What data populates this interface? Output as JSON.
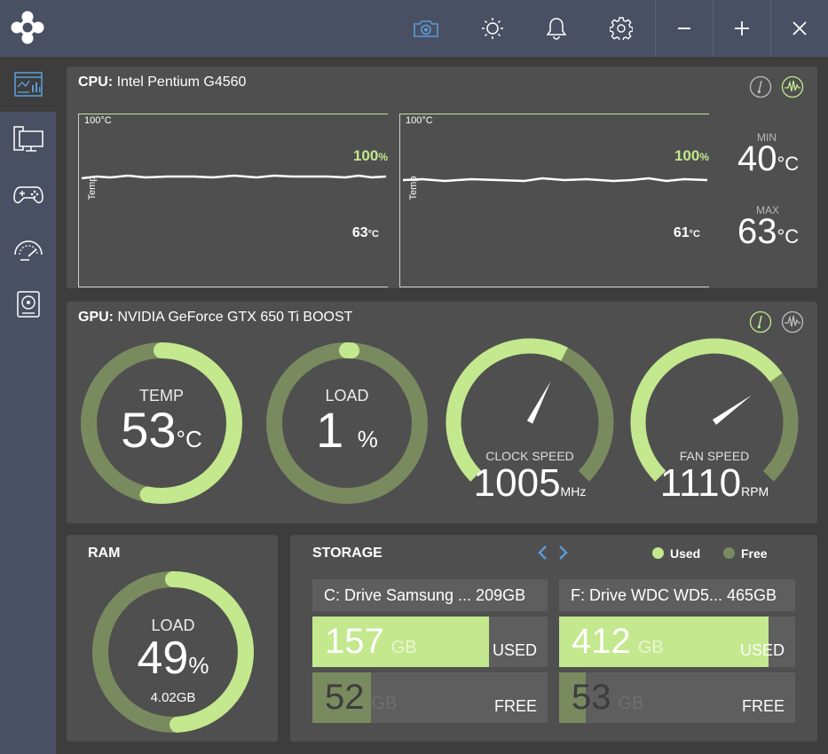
{
  "titlebar": {
    "icons": [
      "app-logo",
      "camera-icon",
      "brightness-icon",
      "bell-icon",
      "gear-icon",
      "minimize-icon",
      "maximize-icon",
      "close-icon"
    ]
  },
  "sidebar": {
    "items": [
      "dashboard-icon",
      "computer-icon",
      "gamepad-icon",
      "speedometer-icon",
      "storage-icon"
    ]
  },
  "cpu": {
    "label": "CPU:",
    "name": "Intel Pentium G4560",
    "graphs": [
      {
        "max_label": "100°C",
        "axis_label": "Temp",
        "load_value": "100",
        "load_unit": "%",
        "temp_value": "63",
        "temp_unit": "°C",
        "load": 100,
        "temp": 63
      },
      {
        "max_label": "100°C",
        "axis_label": "Temp",
        "load_value": "100",
        "load_unit": "%",
        "temp_value": "61",
        "temp_unit": "°C",
        "load": 100,
        "temp": 61
      }
    ],
    "min_label": "MIN",
    "min_value": "40",
    "min_unit": "°C",
    "max_label": "MAX",
    "max_value": "63",
    "max_unit": "°C"
  },
  "gpu": {
    "label": "GPU:",
    "name": "NVIDIA GeForce GTX 650 Ti BOOST",
    "temp": {
      "label": "TEMP",
      "value": "53",
      "unit": "°C",
      "fraction": 0.53
    },
    "load": {
      "label": "LOAD",
      "value": "1",
      "unit": "%",
      "fraction": 0.01
    },
    "clock": {
      "label": "CLOCK SPEED",
      "value": "1005",
      "unit": "MHz",
      "fraction": 0.6
    },
    "fan": {
      "label": "FAN SPEED",
      "value": "1110",
      "unit": "RPM",
      "fraction": 0.7
    }
  },
  "ram": {
    "title": "RAM",
    "label": "LOAD",
    "value": "49",
    "unit": "%",
    "amount": "4.02GB",
    "fraction": 0.49
  },
  "storage": {
    "title": "STORAGE",
    "legend_used": "Used",
    "legend_free": "Free",
    "drives": [
      {
        "name": "C: Drive Samsung ... 209GB",
        "used_value": "157",
        "used_unit": "GB",
        "used_label": "USED",
        "free_value": "52",
        "free_unit": "GB",
        "free_label": "FREE",
        "used_fraction": 0.751,
        "free_fraction": 0.249
      },
      {
        "name": "F: Drive WDC WD5... 465GB",
        "used_value": "412",
        "used_unit": "GB",
        "used_label": "USED",
        "free_value": "53",
        "free_unit": "GB",
        "free_label": "FREE",
        "used_fraction": 0.886,
        "free_fraction": 0.114
      }
    ]
  },
  "colors": {
    "accent_green": "#c3e88d",
    "dim_green": "#7a8a5f",
    "panel": "#4f4f4f",
    "sidebar": "#4a5063",
    "accent_blue": "#5b9bd5"
  }
}
